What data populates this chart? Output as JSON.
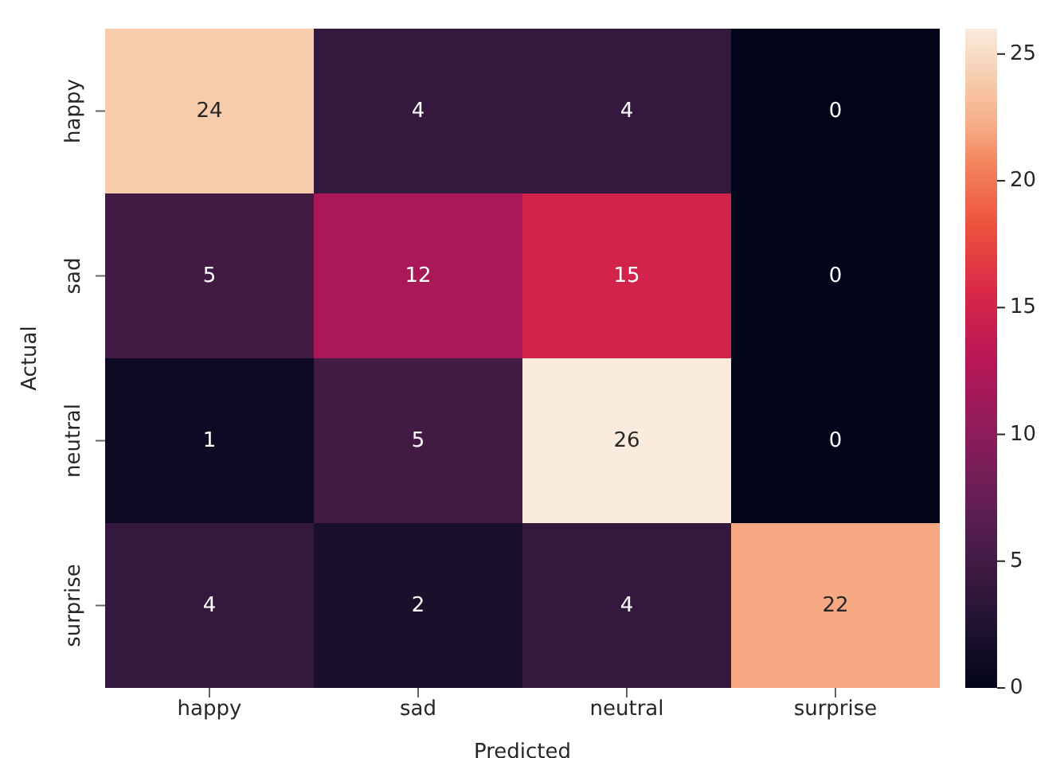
{
  "chart_data": {
    "type": "heatmap",
    "xlabel": "Predicted",
    "ylabel": "Actual",
    "categories": [
      "happy",
      "sad",
      "neutral",
      "surprise"
    ],
    "y_categories": [
      "happy",
      "sad",
      "neutral",
      "surprise"
    ],
    "cells": [
      [
        24,
        4,
        4,
        0
      ],
      [
        5,
        12,
        15,
        0
      ],
      [
        1,
        5,
        26,
        0
      ],
      [
        4,
        2,
        4,
        22
      ]
    ],
    "data_labels": true,
    "clim": [
      0,
      26
    ],
    "cticks": [
      0,
      5,
      10,
      15,
      20,
      25
    ]
  }
}
